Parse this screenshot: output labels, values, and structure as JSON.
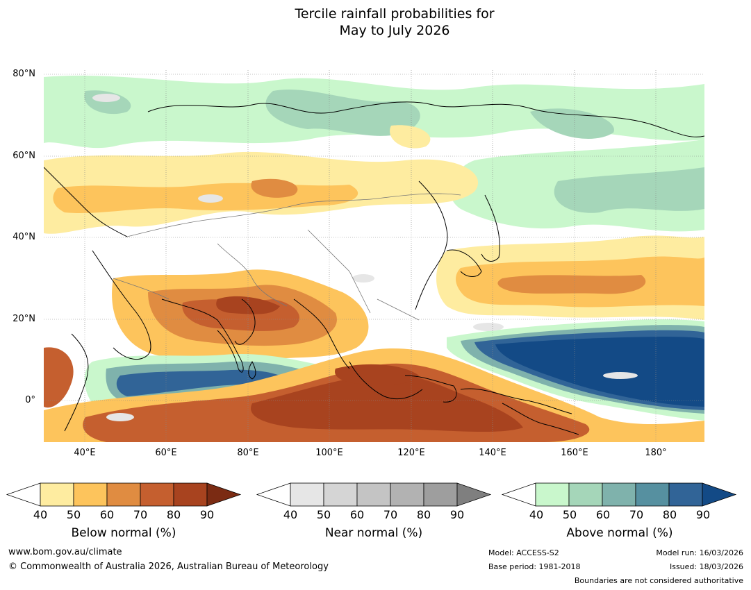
{
  "title": {
    "line1": "Tercile rainfall probabilities for",
    "line2": "May to July 2026"
  },
  "map": {
    "lat_labels": [
      "80°N",
      "60°N",
      "40°N",
      "20°N",
      "0°"
    ],
    "lon_labels": [
      "40°E",
      "60°E",
      "80°E",
      "100°E",
      "120°E",
      "140°E",
      "160°E",
      "180°"
    ],
    "lon_range_deg": [
      30,
      192
    ],
    "lat_range_deg": [
      -10,
      81
    ]
  },
  "legends": [
    {
      "title": "Below normal (%)",
      "ticks": [
        "40",
        "50",
        "60",
        "70",
        "80",
        "90"
      ],
      "colors": [
        "#ffffff",
        "#feeca0",
        "#fdc45c",
        "#e08c41",
        "#c55f2f",
        "#a8431f",
        "#7b2b13"
      ]
    },
    {
      "title": "Near normal (%)",
      "ticks": [
        "40",
        "50",
        "60",
        "70",
        "80",
        "90"
      ],
      "colors": [
        "#ffffff",
        "#e6e6e6",
        "#d5d5d5",
        "#c4c4c4",
        "#b2b2b2",
        "#9e9e9e",
        "#7f7f7f"
      ]
    },
    {
      "title": "Above normal (%)",
      "ticks": [
        "40",
        "50",
        "60",
        "70",
        "80",
        "90"
      ],
      "colors": [
        "#ffffff",
        "#c9f7cc",
        "#a5d6b9",
        "#7fb2ac",
        "#5690a0",
        "#316497",
        "#134a86"
      ]
    }
  ],
  "footer": {
    "website": "www.bom.gov.au/climate",
    "copyright": "© Commonwealth of Australia 2026, Australian Bureau of Meteorology",
    "model": "Model: ACCESS-S2",
    "base_period": "Base period: 1981-2018",
    "model_run": "Model run: 16/03/2026",
    "issued": "Issued: 18/03/2026",
    "disclaimer": "Boundaries are not considered authoritative"
  }
}
